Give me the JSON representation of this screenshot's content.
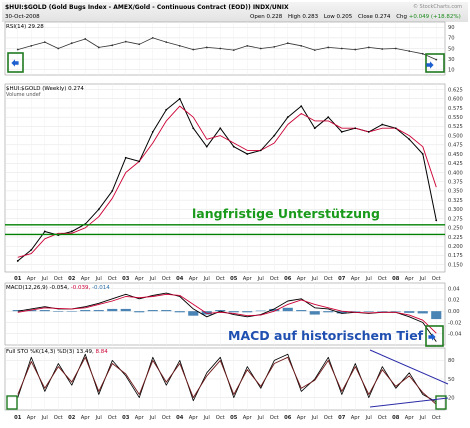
{
  "header": {
    "symbol_line": "$HUI:$GOLD (Gold Bugs Index - AMEX/Gold - Continuous Contract (EOD)) INDX/UNIX",
    "date": "30-Oct-2008",
    "open_label": "Open",
    "open_value": "0.228",
    "high_label": "High",
    "high_value": "0.283",
    "low_label": "Low",
    "low_value": "0.205",
    "close_label": "Close",
    "close_value": "0.274",
    "chg_label": "Chg",
    "chg_value": "+0.049 (+18.82%)",
    "watermark": "© StockCharts.com"
  },
  "colors": {
    "price": "#000000",
    "ma": "#cc0033",
    "support": "#008000",
    "annotation": "#1a9a1a",
    "macd_annotation": "#1f4fb0",
    "hist": "#2a6ea8",
    "sto": "#6e1818",
    "box": "#1f7a1f",
    "arrow": "#1e5fd0",
    "trend": "#2a2aa8"
  },
  "chart_data": [
    {
      "type": "line",
      "panel": "rsi",
      "legend": "RSI(14) 29.28",
      "ylim": [
        0,
        100
      ],
      "tick_labels": [
        "90",
        "70",
        "50",
        "30",
        "10"
      ],
      "ticks": [
        90,
        70,
        50,
        30,
        10
      ],
      "x": [
        "2001-01",
        "2001-04",
        "2001-07",
        "2001-10",
        "2002-01",
        "2002-04",
        "2002-07",
        "2002-10",
        "2003-01",
        "2003-04",
        "2003-07",
        "2003-10",
        "2004-01",
        "2004-04",
        "2004-07",
        "2004-10",
        "2005-01",
        "2005-04",
        "2005-07",
        "2005-10",
        "2006-01",
        "2006-04",
        "2006-07",
        "2006-10",
        "2007-01",
        "2007-04",
        "2007-07",
        "2007-10",
        "2008-01",
        "2008-04",
        "2008-07",
        "2008-10"
      ],
      "series": [
        {
          "values": [
            48,
            55,
            62,
            50,
            60,
            68,
            52,
            56,
            63,
            58,
            70,
            62,
            55,
            48,
            52,
            50,
            47,
            55,
            50,
            53,
            60,
            55,
            47,
            52,
            50,
            48,
            52,
            49,
            50,
            45,
            40,
            29
          ]
        }
      ]
    },
    {
      "type": "line",
      "panel": "price",
      "legend_line1": "$HUI:$GOLD (Weekly) 0.274",
      "legend_line2": "Volume undef",
      "ylim": [
        0.13,
        0.64
      ],
      "tick_labels": [
        "0.625",
        "0.600",
        "0.575",
        "0.550",
        "0.525",
        "0.500",
        "0.475",
        "0.450",
        "0.425",
        "0.400",
        "0.375",
        "0.350",
        "0.325",
        "0.300",
        "0.275",
        "0.250",
        "0.225",
        "0.200",
        "0.175",
        "0.150"
      ],
      "ticks": [
        0.625,
        0.6,
        0.575,
        0.55,
        0.525,
        0.5,
        0.475,
        0.45,
        0.425,
        0.4,
        0.375,
        0.35,
        0.325,
        0.3,
        0.275,
        0.25,
        0.225,
        0.2,
        0.175,
        0.15
      ],
      "x": [
        "2001-01",
        "2001-04",
        "2001-07",
        "2001-10",
        "2002-01",
        "2002-04",
        "2002-07",
        "2002-10",
        "2003-01",
        "2003-04",
        "2003-07",
        "2003-10",
        "2004-01",
        "2004-04",
        "2004-07",
        "2004-10",
        "2005-01",
        "2005-04",
        "2005-07",
        "2005-10",
        "2006-01",
        "2006-04",
        "2006-07",
        "2006-10",
        "2007-01",
        "2007-04",
        "2007-07",
        "2007-10",
        "2008-01",
        "2008-04",
        "2008-07",
        "2008-10"
      ],
      "series": [
        {
          "values": [
            0.16,
            0.19,
            0.24,
            0.23,
            0.24,
            0.26,
            0.3,
            0.35,
            0.44,
            0.43,
            0.51,
            0.57,
            0.6,
            0.52,
            0.47,
            0.52,
            0.47,
            0.45,
            0.46,
            0.5,
            0.55,
            0.58,
            0.52,
            0.55,
            0.51,
            0.52,
            0.51,
            0.53,
            0.52,
            0.49,
            0.45,
            0.27
          ]
        },
        {
          "values": [
            0.17,
            0.18,
            0.22,
            0.235,
            0.235,
            0.25,
            0.28,
            0.33,
            0.4,
            0.43,
            0.48,
            0.54,
            0.58,
            0.55,
            0.49,
            0.5,
            0.48,
            0.46,
            0.46,
            0.48,
            0.53,
            0.56,
            0.54,
            0.54,
            0.52,
            0.52,
            0.51,
            0.52,
            0.52,
            0.5,
            0.47,
            0.36
          ]
        }
      ],
      "support_level": 0.245,
      "support_levels": [
        0.258,
        0.232
      ],
      "annotation": "langfristige Unterstützung"
    },
    {
      "type": "line",
      "panel": "macd",
      "legend_prefix": "MACD(12,26,9) ",
      "legend_v1": "-0.054,",
      "legend_v2": " -0.039,",
      "legend_v3": " -0.014",
      "ylim": [
        -0.06,
        0.05
      ],
      "tick_labels": [
        "0.04",
        "0.02",
        "0.00",
        "-0.02",
        "-0.04"
      ],
      "ticks": [
        0.04,
        0.02,
        0.0,
        -0.02,
        -0.04
      ],
      "x": [
        "2001-01",
        "2001-04",
        "2001-07",
        "2001-10",
        "2002-01",
        "2002-04",
        "2002-07",
        "2002-10",
        "2003-01",
        "2003-04",
        "2003-07",
        "2003-10",
        "2004-01",
        "2004-04",
        "2004-07",
        "2004-10",
        "2005-01",
        "2005-04",
        "2005-07",
        "2005-10",
        "2006-01",
        "2006-04",
        "2006-07",
        "2006-10",
        "2007-01",
        "2007-04",
        "2007-07",
        "2007-10",
        "2008-01",
        "2008-04",
        "2008-07",
        "2008-10"
      ],
      "series": [
        {
          "values": [
            0.0,
            0.004,
            0.008,
            0.004,
            0.004,
            0.008,
            0.014,
            0.022,
            0.03,
            0.022,
            0.028,
            0.032,
            0.026,
            0.004,
            -0.01,
            0.0,
            -0.006,
            -0.01,
            -0.006,
            0.004,
            0.018,
            0.022,
            0.006,
            0.004,
            -0.004,
            -0.002,
            -0.004,
            -0.002,
            -0.002,
            -0.01,
            -0.02,
            -0.054
          ]
        },
        {
          "values": [
            -0.002,
            0.002,
            0.006,
            0.005,
            0.004,
            0.006,
            0.012,
            0.018,
            0.026,
            0.024,
            0.026,
            0.03,
            0.028,
            0.012,
            -0.004,
            -0.002,
            -0.004,
            -0.008,
            -0.007,
            0.0,
            0.012,
            0.02,
            0.012,
            0.006,
            0.0,
            -0.002,
            -0.003,
            -0.002,
            -0.002,
            -0.007,
            -0.016,
            -0.039
          ]
        },
        {
          "values": [
            0.002,
            0.002,
            0.002,
            -0.001,
            0.0,
            0.002,
            0.002,
            0.004,
            0.004,
            -0.002,
            0.002,
            0.002,
            -0.002,
            -0.008,
            -0.006,
            0.002,
            -0.002,
            -0.002,
            0.001,
            0.004,
            0.006,
            0.002,
            -0.006,
            -0.002,
            -0.004,
            0.0,
            -0.001,
            0.0,
            0.0,
            -0.003,
            -0.004,
            -0.014
          ]
        }
      ],
      "annotation": "MACD auf historischem Tief"
    },
    {
      "type": "line",
      "panel": "sto",
      "legend_prefix": "Full STO %K(14,3) %D(3) ",
      "legend_v1": "13.49,",
      "legend_v2": " 8.84",
      "ylim": [
        0,
        100
      ],
      "tick_labels": [
        "80",
        "50",
        "20"
      ],
      "ticks": [
        80,
        50,
        20
      ],
      "x": [
        "2001-01",
        "2001-04",
        "2001-07",
        "2001-10",
        "2002-01",
        "2002-04",
        "2002-07",
        "2002-10",
        "2003-01",
        "2003-04",
        "2003-07",
        "2003-10",
        "2004-01",
        "2004-04",
        "2004-07",
        "2004-10",
        "2005-01",
        "2005-04",
        "2005-07",
        "2005-10",
        "2006-01",
        "2006-04",
        "2006-07",
        "2006-10",
        "2007-01",
        "2007-04",
        "2007-07",
        "2007-10",
        "2008-01",
        "2008-04",
        "2008-07",
        "2008-10"
      ],
      "series": [
        {
          "values": [
            20,
            85,
            30,
            75,
            40,
            90,
            25,
            80,
            55,
            20,
            85,
            40,
            80,
            15,
            60,
            85,
            20,
            70,
            35,
            80,
            90,
            30,
            50,
            85,
            25,
            75,
            20,
            70,
            35,
            60,
            25,
            13
          ]
        },
        {
          "values": [
            25,
            78,
            35,
            70,
            45,
            85,
            30,
            75,
            58,
            25,
            80,
            45,
            75,
            20,
            55,
            80,
            25,
            65,
            38,
            75,
            85,
            35,
            48,
            80,
            30,
            70,
            25,
            65,
            38,
            55,
            28,
            9
          ]
        }
      ]
    }
  ],
  "x_axis": {
    "labels": [
      "01",
      "Apr",
      "Jul",
      "Oct",
      "02",
      "Apr",
      "Jul",
      "Oct",
      "03",
      "Apr",
      "Jul",
      "Oct",
      "04",
      "Apr",
      "Jul",
      "Oct",
      "05",
      "Apr",
      "Jul",
      "Oct",
      "06",
      "Apr",
      "Jul",
      "Oct",
      "07",
      "Apr",
      "Jul",
      "Oct",
      "08",
      "Apr",
      "Jul",
      "Oct"
    ]
  }
}
